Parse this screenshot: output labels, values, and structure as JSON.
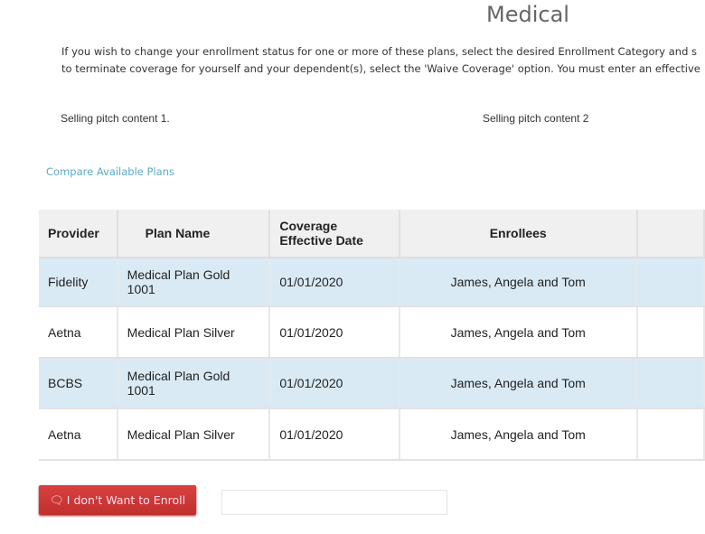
{
  "title": "Medical",
  "intro": [
    "If you wish to change your enrollment status for one or more of these plans, select the desired Enrollment Category and s",
    "to terminate coverage for yourself and your dependent(s), select the 'Waive Coverage' option. You must enter an effective"
  ],
  "pitch": [
    "Selling pitch content 1.",
    "Selling pitch content 2"
  ],
  "compare_link": "Compare Available Plans",
  "table": {
    "headers": [
      "Provider",
      "Plan Name",
      "Coverage Effective Date",
      "Enrollees",
      ""
    ],
    "rows": [
      [
        "Fidelity",
        "Medical Plan Gold 1001",
        "01/01/2020",
        "James, Angela and Tom"
      ],
      [
        "Aetna",
        "Medical Plan Silver",
        "01/01/2020",
        "James, Angela and Tom"
      ],
      [
        "BCBS",
        "Medical Plan Gold 1001",
        "01/01/2020",
        "James, Angela and Tom"
      ],
      [
        "Aetna",
        "Medical Plan Silver",
        "01/01/2020",
        "James, Angela and Tom"
      ]
    ]
  },
  "waive_button": "I don't Want to Enroll",
  "waive_icon": "thumbs-down-icon",
  "colors": {
    "row_highlight": "#d9eaf5",
    "button": "#c9393a",
    "link": "#5fa8c8"
  }
}
